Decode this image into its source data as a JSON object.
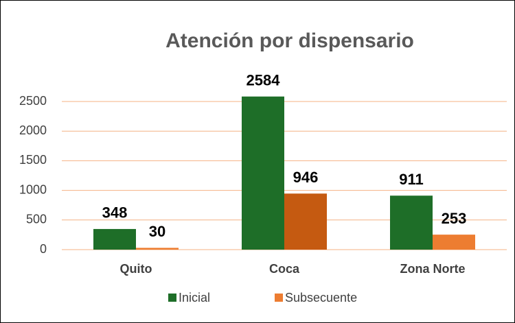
{
  "chart_data": {
    "type": "bar",
    "title": "Atención por dispensario",
    "categories": [
      "Quito",
      "Coca",
      "Zona Norte"
    ],
    "series": [
      {
        "name": "Inicial",
        "color": "#1e6e28",
        "values": [
          348,
          2584,
          911
        ]
      },
      {
        "name": "Subsecuente",
        "color": "#ed7d31",
        "colors": [
          "#ed7d31",
          "#c55a11",
          "#ed7d31"
        ],
        "values": [
          30,
          946,
          253
        ]
      }
    ],
    "ylim": [
      0,
      2500
    ],
    "yticks": [
      0,
      500,
      1000,
      1500,
      2000,
      2500
    ],
    "grid": true,
    "legend": "bottom"
  }
}
